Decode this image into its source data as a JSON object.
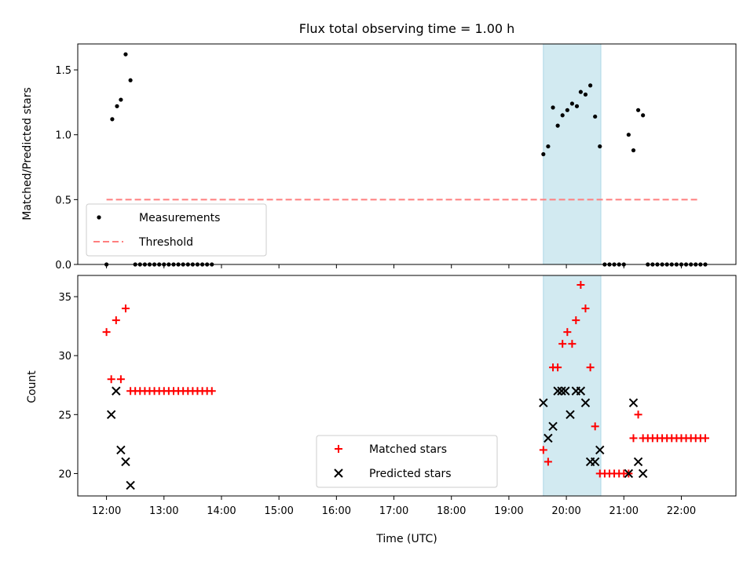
{
  "chart_data": {
    "title": "Flux total observing time = 1.00 h",
    "xlabel": "Time (UTC)",
    "x_ticks": [
      "12:00",
      "13:00",
      "14:00",
      "15:00",
      "16:00",
      "17:00",
      "18:00",
      "19:00",
      "20:00",
      "21:00",
      "22:00"
    ],
    "xlim_hours": [
      11.5,
      22.95
    ],
    "highlight_band_hours": [
      19.6,
      20.6
    ],
    "highlight_color": "#add8e6",
    "panels": [
      {
        "type": "scatter",
        "ylabel": "Matched/Predicted stars",
        "ylim": [
          0,
          1.7
        ],
        "y_ticks": [
          "0.0",
          "0.5",
          "1.0",
          "1.5"
        ],
        "y_tick_values": [
          0,
          0.5,
          1.0,
          1.5
        ],
        "legend_position": "lower-left",
        "series": [
          {
            "name": "Measurements",
            "marker": "dot",
            "color": "#000000",
            "x_hours": [
              12.0,
              12.1,
              12.183,
              12.25,
              12.333,
              12.417,
              12.5,
              12.583,
              12.667,
              12.75,
              12.833,
              12.917,
              13.0,
              13.083,
              13.167,
              13.25,
              13.333,
              13.417,
              13.5,
              13.583,
              13.667,
              13.75,
              13.833,
              19.6,
              19.683,
              19.767,
              19.85,
              19.933,
              20.017,
              20.1,
              20.183,
              20.25,
              20.333,
              20.417,
              20.5,
              20.583,
              20.667,
              20.75,
              20.833,
              20.917,
              21.0,
              21.083,
              21.167,
              21.25,
              21.333,
              21.417,
              21.5,
              21.583,
              21.667,
              21.75,
              21.833,
              21.917,
              22.0,
              22.083,
              22.167,
              22.25,
              22.333,
              22.417
            ],
            "values": [
              0,
              1.12,
              1.22,
              1.27,
              1.62,
              1.42,
              0,
              0,
              0,
              0,
              0,
              0,
              0,
              0,
              0,
              0,
              0,
              0,
              0,
              0,
              0,
              0,
              0,
              0.85,
              0.91,
              1.21,
              1.07,
              1.15,
              1.19,
              1.24,
              1.22,
              1.33,
              1.31,
              1.38,
              1.14,
              0.91,
              0,
              0,
              0,
              0,
              0,
              1.0,
              0.88,
              1.19,
              1.15,
              0,
              0,
              0,
              0,
              0,
              0,
              0,
              0,
              0,
              0,
              0,
              0,
              0
            ]
          },
          {
            "name": "Threshold",
            "line": "dashed",
            "color": "#ff7f7f",
            "x_hours": [
              12.0,
              22.3
            ],
            "values": [
              0.5,
              0.5
            ]
          }
        ]
      },
      {
        "type": "scatter",
        "ylabel": "Count",
        "ylim": [
          18.1,
          36.8
        ],
        "y_ticks": [
          "20",
          "25",
          "30",
          "35"
        ],
        "y_tick_values": [
          20,
          25,
          30,
          35
        ],
        "legend_position": "lower-center",
        "series": [
          {
            "name": "Matched stars",
            "marker": "plus",
            "color": "#ff0000",
            "x_hours": [
              12.0,
              12.083,
              12.167,
              12.25,
              12.333,
              12.417,
              12.5,
              12.583,
              12.667,
              12.75,
              12.833,
              12.917,
              13.0,
              13.083,
              13.167,
              13.25,
              13.333,
              13.417,
              13.5,
              13.583,
              13.667,
              13.75,
              13.833,
              19.6,
              19.683,
              19.767,
              19.85,
              19.933,
              20.017,
              20.1,
              20.167,
              20.25,
              20.333,
              20.417,
              20.5,
              20.583,
              20.667,
              20.75,
              20.833,
              20.917,
              21.0,
              21.083,
              21.167,
              21.25,
              21.333,
              21.417,
              21.5,
              21.583,
              21.667,
              21.75,
              21.833,
              21.917,
              22.0,
              22.083,
              22.167,
              22.25,
              22.333,
              22.417
            ],
            "values": [
              32,
              28,
              33,
              28,
              34,
              27,
              27,
              27,
              27,
              27,
              27,
              27,
              27,
              27,
              27,
              27,
              27,
              27,
              27,
              27,
              27,
              27,
              27,
              22,
              21,
              29,
              29,
              31,
              32,
              31,
              33,
              36,
              34,
              29,
              24,
              20,
              20,
              20,
              20,
              20,
              20,
              20,
              23,
              25,
              23,
              23,
              23,
              23,
              23,
              23,
              23,
              23,
              23,
              23,
              23,
              23,
              23,
              23
            ]
          },
          {
            "name": "Predicted stars",
            "marker": "x",
            "color": "#000000",
            "x_hours": [
              12.083,
              12.167,
              12.25,
              12.333,
              12.417,
              19.6,
              19.683,
              19.767,
              19.85,
              19.917,
              19.983,
              20.067,
              20.167,
              20.25,
              20.333,
              20.417,
              20.5,
              20.583,
              21.083,
              21.167,
              21.25,
              21.333
            ],
            "values": [
              25,
              27,
              22,
              21,
              19,
              26,
              23,
              24,
              27,
              27,
              27,
              25,
              27,
              27,
              26,
              21,
              21,
              22,
              20,
              26,
              21,
              20
            ]
          }
        ]
      }
    ]
  }
}
